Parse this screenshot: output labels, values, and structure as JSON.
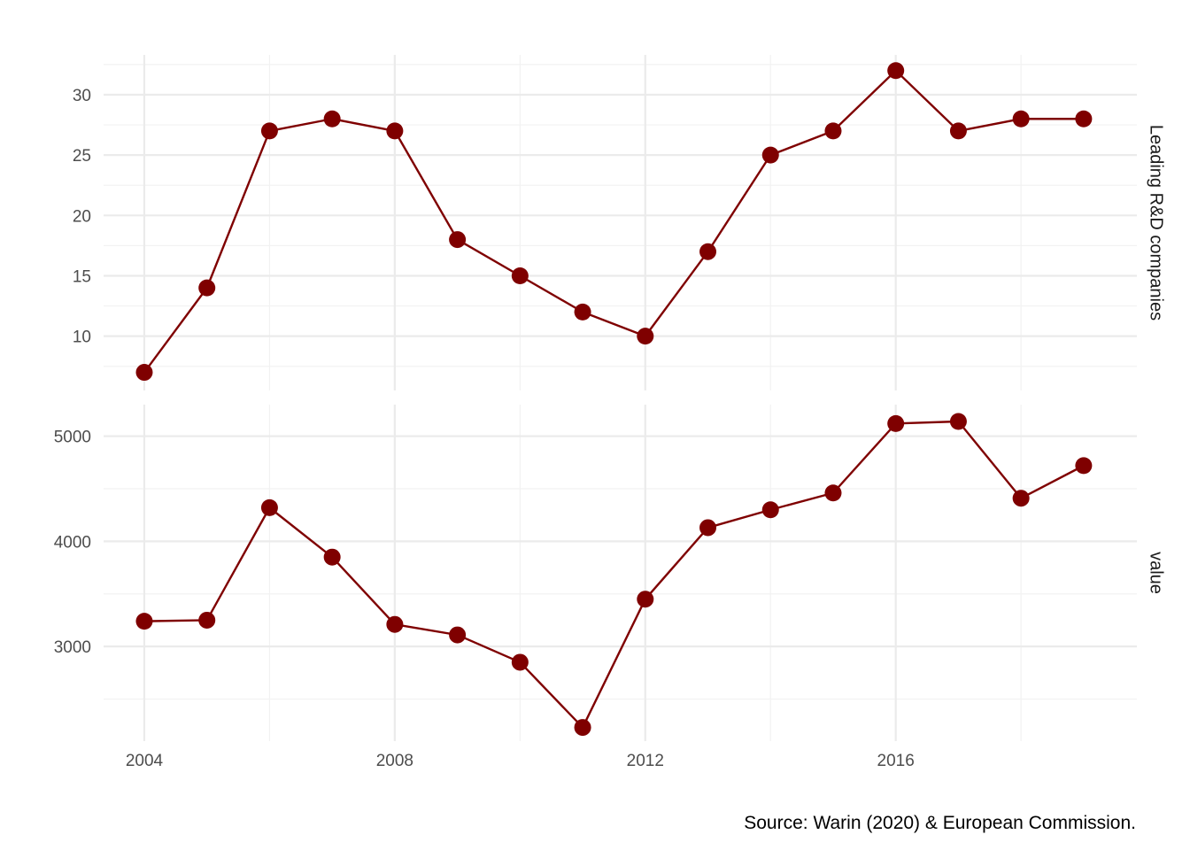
{
  "caption": "Source: Warin (2020) & European Commission.",
  "colors": {
    "series": "#7f0000",
    "grid_major": "#ebebeb",
    "grid_minor": "#f2f2f2",
    "text": "#4d4d4d"
  },
  "chart_data": {
    "type": "line",
    "facets": [
      {
        "strip_label": "Leading R&D companies",
        "y_ticks": [
          10,
          15,
          20,
          25,
          30
        ],
        "ylim": [
          5.5,
          33.3
        ],
        "x": [
          2004,
          2005,
          2006,
          2007,
          2008,
          2009,
          2010,
          2011,
          2012,
          2013,
          2014,
          2015,
          2016,
          2017,
          2018,
          2019
        ],
        "values": [
          7,
          14,
          27,
          28,
          27,
          18,
          15,
          12,
          10,
          17,
          25,
          27,
          32,
          27,
          28,
          28
        ]
      },
      {
        "strip_label": "value",
        "y_ticks": [
          3000,
          4000,
          5000
        ],
        "ylim": [
          2100,
          5300
        ],
        "x": [
          2004,
          2005,
          2006,
          2007,
          2008,
          2009,
          2010,
          2011,
          2012,
          2013,
          2014,
          2015,
          2016,
          2017,
          2018,
          2019
        ],
        "values": [
          3240,
          3250,
          4320,
          3850,
          3210,
          3110,
          2850,
          2230,
          3450,
          4130,
          4300,
          4460,
          5120,
          5140,
          4410,
          4720
        ]
      }
    ],
    "x_ticks": [
      2004,
      2008,
      2012,
      2016
    ],
    "xlim": [
      2003.35,
      2019.85
    ],
    "grid": true,
    "point_markers": true
  }
}
